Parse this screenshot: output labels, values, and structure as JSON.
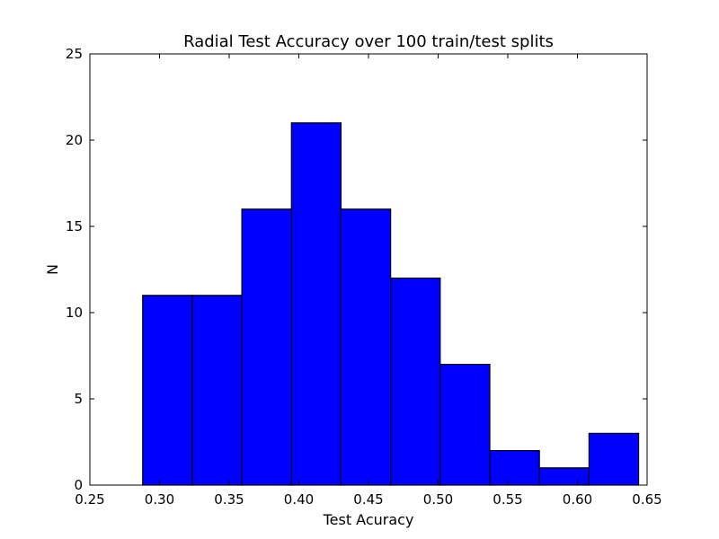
{
  "chart_data": {
    "type": "bar",
    "title": "Radial Test Accuracy over 100 train/test splits",
    "xlabel": "Test Acuracy",
    "ylabel": "N",
    "xlim": [
      0.25,
      0.65
    ],
    "ylim": [
      0,
      25
    ],
    "xticks": [
      "0.25",
      "0.30",
      "0.35",
      "0.40",
      "0.45",
      "0.50",
      "0.55",
      "0.60",
      "0.65"
    ],
    "yticks": [
      "0",
      "5",
      "10",
      "15",
      "20",
      "25"
    ],
    "bin_edges": [
      0.2879,
      0.3235,
      0.3591,
      0.3947,
      0.4303,
      0.4659,
      0.5015,
      0.5371,
      0.5727,
      0.6083,
      0.6439
    ],
    "values": [
      11,
      11,
      16,
      21,
      16,
      12,
      7,
      2,
      1,
      3
    ],
    "bar_color": "#0000ff",
    "grid": false,
    "legend": "none"
  }
}
